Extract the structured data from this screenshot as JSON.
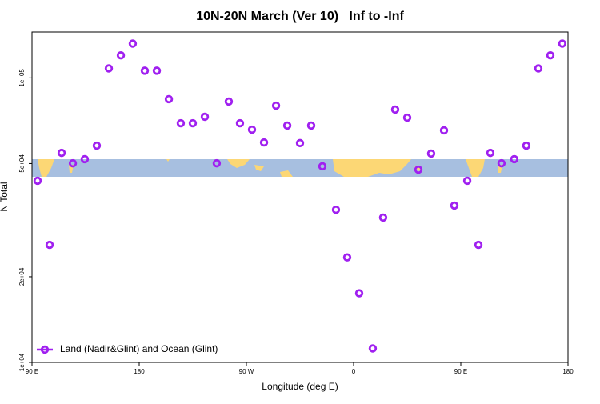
{
  "chart_data": {
    "type": "scatter",
    "title": "10N-20N March (Ver 10)   Inf to -Inf",
    "x_label": "Longitude (deg E)",
    "y_label": "N Total",
    "log_y": true,
    "legend_position": "bottom-left",
    "xlim": [
      90,
      540
    ],
    "xticks": [
      {
        "value": 90,
        "label": "90 E"
      },
      180,
      {
        "value": 270,
        "label": "90 W"
      },
      {
        "value": 360,
        "label": "0"
      },
      {
        "value": 450,
        "label": "90 E"
      },
      {
        "value": 540,
        "label": "180"
      }
    ],
    "ylim": [
      10000,
      145000
    ],
    "yticks": [
      {
        "value": 10000,
        "label": "1e+04"
      },
      {
        "value": 20000,
        "label": "2e+04"
      },
      {
        "value": 50000,
        "label": "5e+04"
      },
      {
        "value": 100000,
        "label": "1e+05"
      }
    ],
    "series": [
      {
        "name": "Land (Nadir&Glint) and Ocean (Glint)",
        "color": "#a020f0",
        "x": [
          94.7,
          104.8,
          114.9,
          124.3,
          134.3,
          144.4,
          154.5,
          164.6,
          174.6,
          184.7,
          194.8,
          204.9,
          214.9,
          225.0,
          235.1,
          245.1,
          255.2,
          264.6,
          274.7,
          284.8,
          294.9,
          304.3,
          315.0,
          324.4,
          333.8,
          345.2,
          354.6,
          364.7,
          376.1,
          384.8,
          394.9,
          405.0,
          414.4,
          425.1,
          435.9,
          444.6,
          455.4,
          464.8,
          474.8,
          484.2,
          494.9,
          505.0,
          515.1,
          525.2,
          535.2
        ],
        "values": [
          43500,
          25900,
          54500,
          50100,
          51800,
          57800,
          108000,
          120000,
          132000,
          106000,
          106000,
          84200,
          69300,
          69300,
          73000,
          50100,
          82600,
          69300,
          65800,
          59300,
          79900,
          68000,
          59000,
          68000,
          48900,
          34400,
          23400,
          17500,
          11200,
          32300,
          77400,
          72500,
          47600,
          54200,
          65400,
          35600,
          43500,
          25900,
          54500,
          50100,
          51800,
          57800,
          108000,
          120000,
          132000
        ]
      }
    ]
  }
}
